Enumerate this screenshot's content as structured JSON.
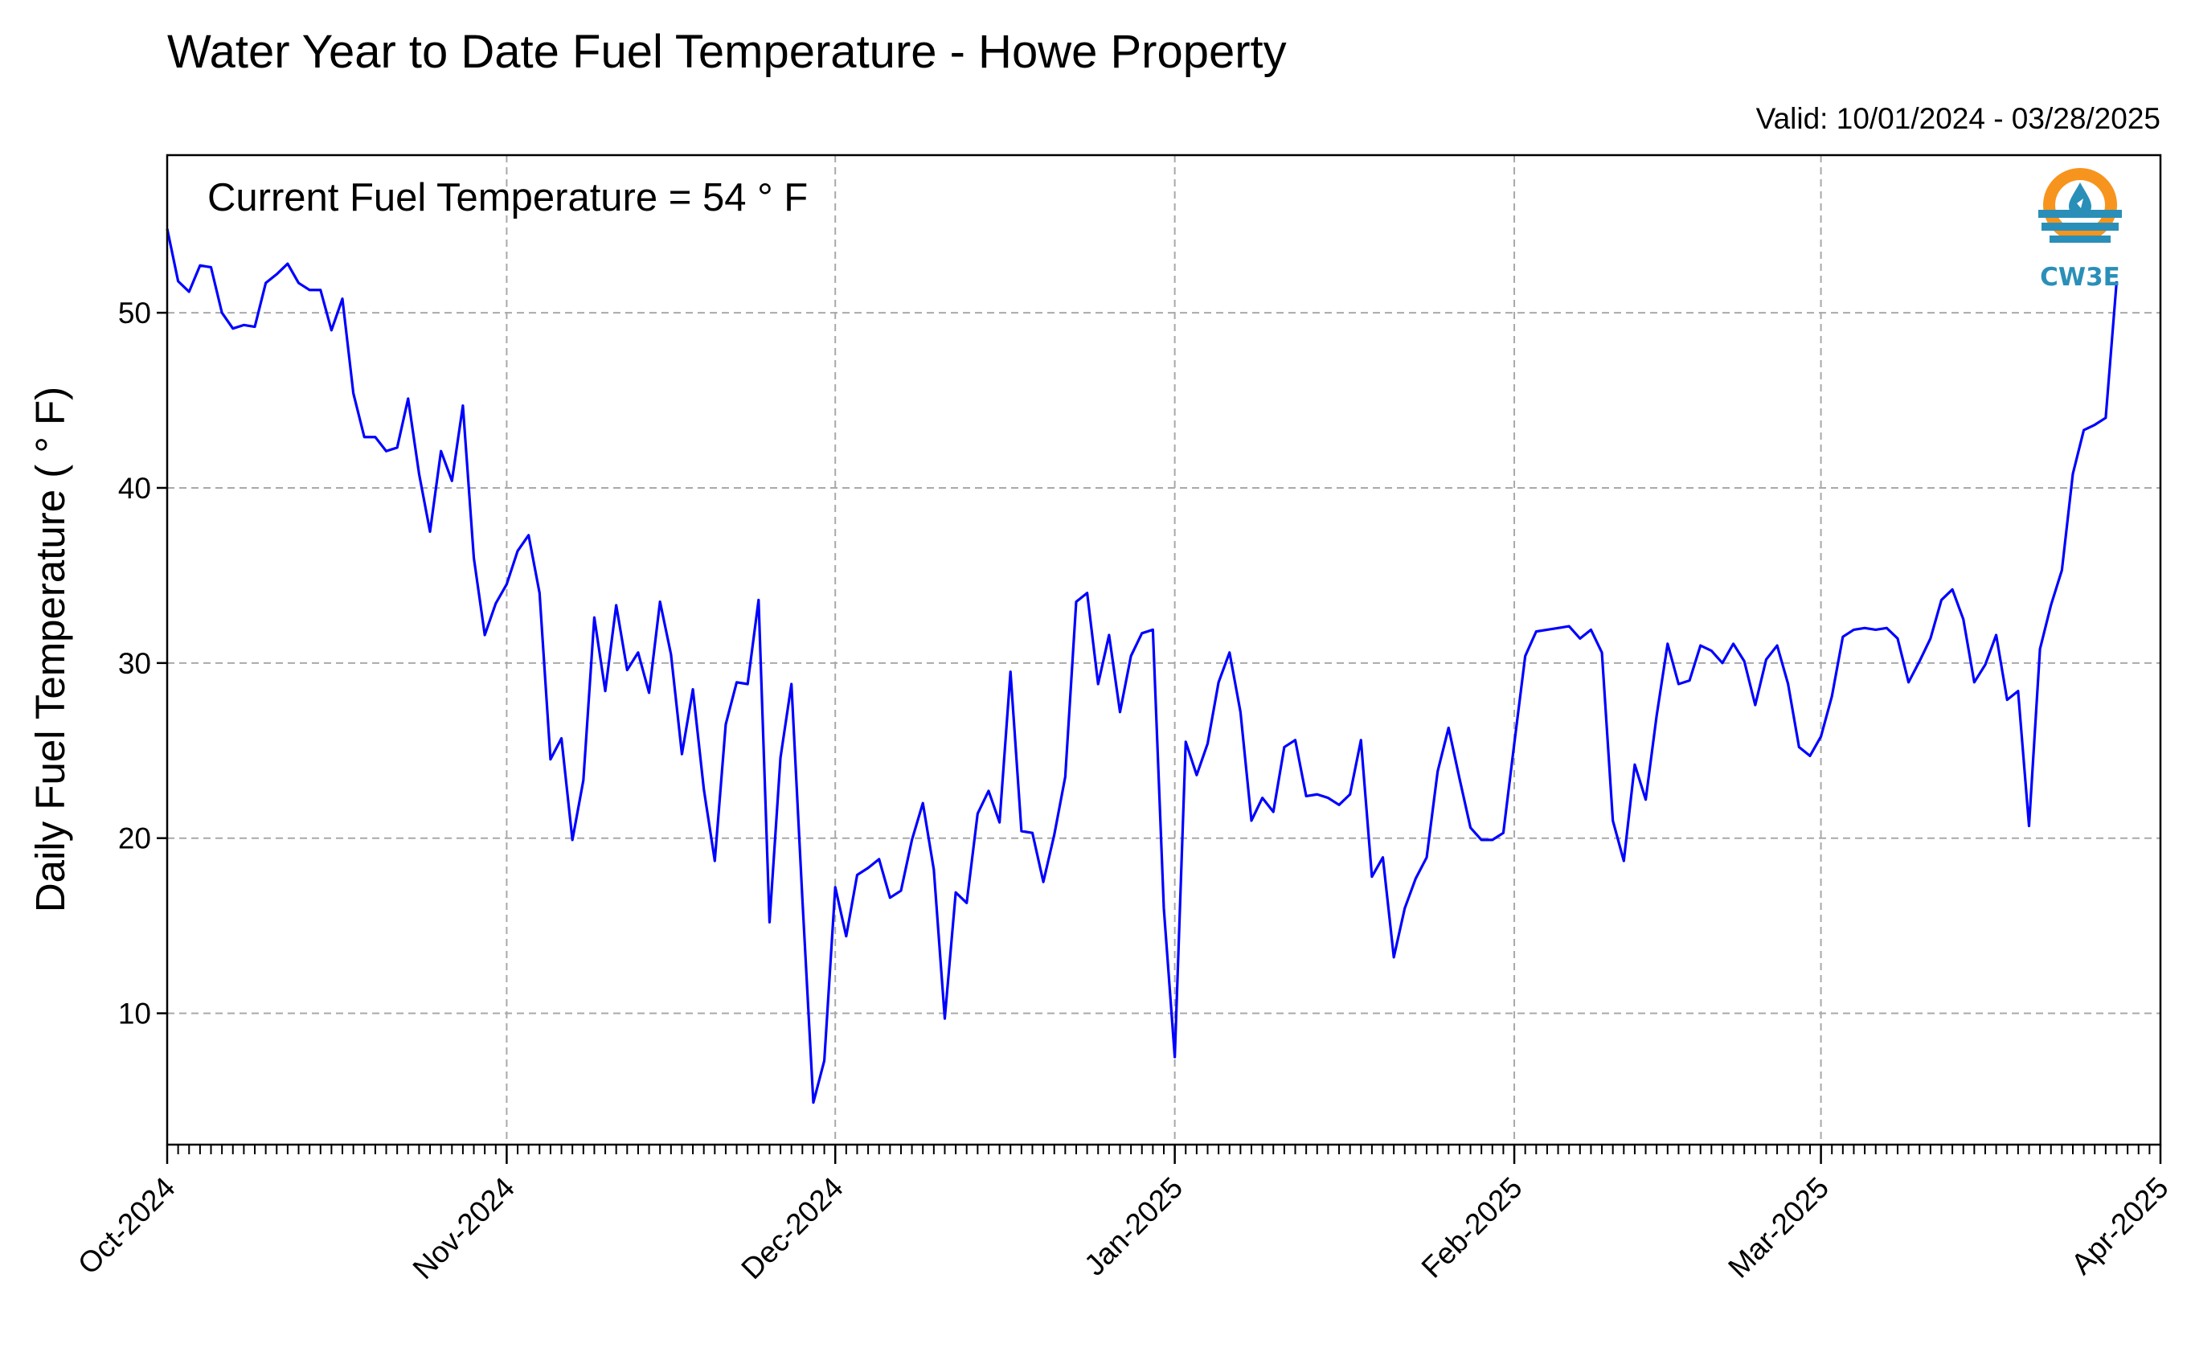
{
  "chart_data": {
    "type": "line",
    "title": "Water Year to Date Fuel Temperature - Howe Property",
    "subtitle": "Valid: 10/01/2024 - 03/28/2025",
    "annotation": "Current Fuel Temperature = 54 ° F",
    "ylabel": "Daily Fuel Temperature ( ° F)",
    "xlabel": "",
    "ylim": [
      2.5,
      59
    ],
    "yticks": [
      10,
      20,
      30,
      40,
      50
    ],
    "xlim": [
      "2024-10-01",
      "2025-04-01"
    ],
    "xticks": [
      {
        "date": "2024-10-01",
        "label": "Oct-2024"
      },
      {
        "date": "2024-11-01",
        "label": "Nov-2024"
      },
      {
        "date": "2024-12-01",
        "label": "Dec-2024"
      },
      {
        "date": "2025-01-01",
        "label": "Jan-2025"
      },
      {
        "date": "2025-02-01",
        "label": "Feb-2025"
      },
      {
        "date": "2025-03-01",
        "label": "Mar-2025"
      },
      {
        "date": "2025-04-01",
        "label": "Apr-2025"
      }
    ],
    "grid": true,
    "line_color": "#0000ff",
    "series": [
      {
        "start_date": "2024-10-01",
        "values": [
          54.8,
          51.8,
          51.2,
          52.7,
          52.6,
          50.0,
          49.1,
          49.3,
          49.2,
          51.7,
          52.2,
          52.8,
          51.7,
          51.3,
          51.3,
          49.0,
          50.8,
          45.4,
          42.9,
          42.9,
          42.1,
          42.3,
          45.1,
          40.8,
          37.5,
          42.1,
          40.4,
          44.7,
          36.0,
          31.6,
          33.4,
          34.5,
          36.4,
          37.3,
          34.0,
          24.5,
          25.7,
          19.9,
          23.3,
          32.6,
          28.4,
          33.3,
          29.6,
          30.6,
          28.3,
          33.5,
          30.5,
          24.8,
          28.5,
          22.8,
          18.7,
          26.5,
          28.9,
          28.8,
          33.6,
          15.2,
          24.6,
          28.8,
          16.5,
          4.9,
          7.3,
          17.2,
          14.4,
          17.9,
          18.3,
          18.8,
          16.6,
          17.0,
          19.9,
          22.0,
          18.2,
          9.7,
          16.9,
          16.3,
          21.4,
          22.7,
          20.9,
          29.5,
          20.4,
          20.3,
          17.5,
          20.2,
          23.5,
          33.5,
          34.0,
          28.8,
          31.6,
          27.2,
          30.4,
          31.7,
          31.9,
          16.0,
          7.5,
          25.5,
          23.6,
          25.4,
          28.9,
          30.6,
          27.2,
          21.0,
          22.3,
          21.5,
          25.2,
          25.6,
          22.4,
          22.5,
          22.3,
          21.9,
          22.5,
          25.6,
          17.8,
          18.9,
          13.2,
          16.0,
          17.7,
          18.9,
          23.8,
          26.3,
          23.4,
          20.6,
          19.9,
          19.9,
          20.3,
          25.4,
          30.4,
          31.8,
          31.9,
          32.0,
          32.1,
          31.4,
          31.9,
          30.6,
          21.0,
          18.7,
          24.2,
          22.2,
          27.0,
          31.1,
          28.8,
          29.0,
          31.0,
          30.7,
          30.0,
          31.1,
          30.1,
          27.6,
          30.2,
          31.0,
          28.8,
          25.2,
          24.7,
          25.8,
          28.1,
          31.5,
          31.9,
          32.0,
          31.9,
          32.0,
          31.4,
          28.9,
          30.1,
          31.4,
          33.6,
          34.2,
          32.5,
          28.9,
          29.9,
          31.6,
          27.9,
          28.4,
          20.7,
          30.8,
          33.3,
          35.3,
          40.8,
          43.3,
          43.6,
          44.0,
          51.8
        ]
      }
    ]
  },
  "logo": {
    "text": "CW3E",
    "ring_color": "#f7941d",
    "wave_color": "#2a8fb8"
  }
}
